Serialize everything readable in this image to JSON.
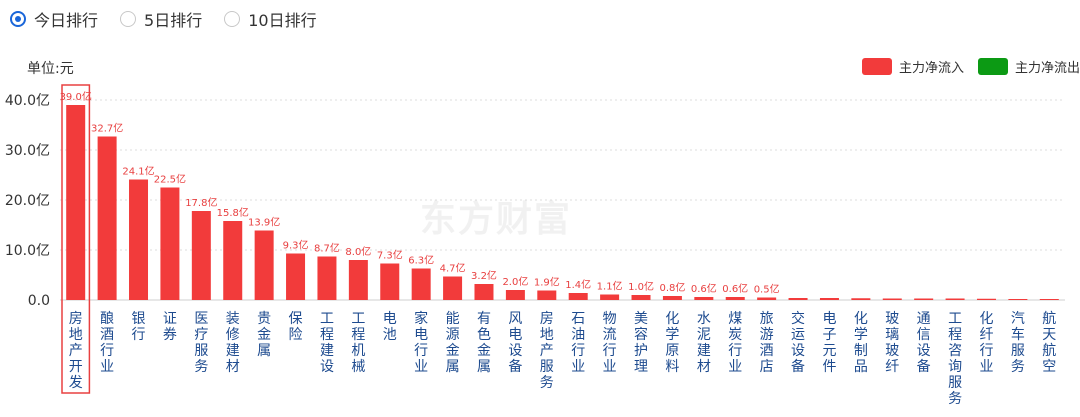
{
  "radio_options": [
    {
      "label": "今日排行",
      "checked": true
    },
    {
      "label": "5日排行",
      "checked": false
    },
    {
      "label": "10日排行",
      "checked": false
    }
  ],
  "unit_label": "单位:元",
  "watermark": "东方财富",
  "legend": [
    {
      "label": "主力净流入",
      "color": "#f23b3b"
    },
    {
      "label": "主力净流出",
      "color": "#0c9a14"
    }
  ],
  "chart_data": {
    "type": "bar",
    "ylim": [
      0,
      40
    ],
    "yticks": [
      "0.0",
      "10.0亿",
      "20.0亿",
      "30.0亿",
      "40.0亿"
    ],
    "yticks_values": [
      0,
      10,
      20,
      30,
      40
    ],
    "categories": [
      "房地产开发",
      "酿酒行业",
      "银行",
      "证券",
      "医疗服务",
      "装修建材",
      "贵金属",
      "保险",
      "工程建设",
      "工程机械",
      "电池",
      "家电行业",
      "能源金属",
      "有色金属",
      "风电设备",
      "房地产服务",
      "石油行业",
      "物流行业",
      "美容护理",
      "化学原料",
      "水泥建材",
      "煤炭行业",
      "旅游酒店",
      "交运设备",
      "电子元件",
      "化学制品",
      "玻璃玻纤",
      "通信设备",
      "工程咨询服务",
      "化纤行业",
      "汽车服务",
      "航天航空"
    ],
    "values": [
      39.0,
      32.7,
      24.1,
      22.5,
      17.8,
      15.8,
      13.9,
      9.3,
      8.7,
      8.0,
      7.3,
      6.3,
      4.7,
      3.2,
      2.0,
      1.9,
      1.4,
      1.1,
      1.0,
      0.8,
      0.6,
      0.6,
      0.5,
      0.4,
      0.4,
      0.35,
      0.3,
      0.3,
      0.3,
      0.25,
      0.2,
      0.15
    ],
    "value_labels": [
      "39.0亿",
      "32.7亿",
      "24.1亿",
      "22.5亿",
      "17.8亿",
      "15.8亿",
      "13.9亿",
      "9.3亿",
      "8.7亿",
      "8.0亿",
      "7.3亿",
      "6.3亿",
      "4.7亿",
      "3.2亿",
      "2.0亿",
      "1.9亿",
      "1.4亿",
      "1.1亿",
      "1.0亿",
      "0.8亿",
      "0.6亿",
      "0.6亿",
      "0.5亿",
      "",
      "",
      "",
      "",
      "",
      "",
      "",
      "",
      ""
    ],
    "bar_color": "#f23b3b",
    "highlighted_index": 0,
    "grid": true
  }
}
